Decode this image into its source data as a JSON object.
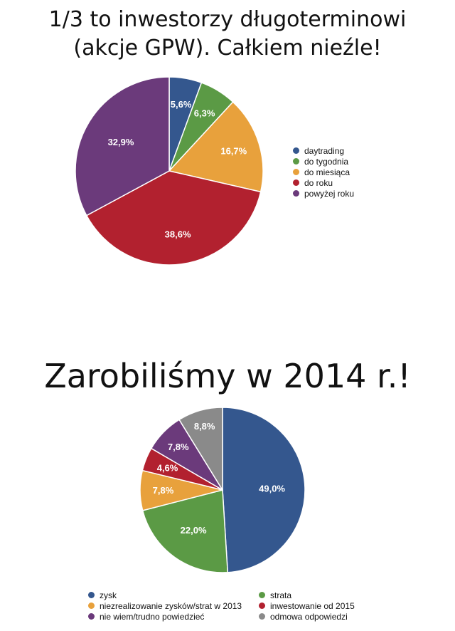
{
  "chart_data": [
    {
      "type": "pie",
      "title": "1/3 to inwestorzy długoterminowi (akcje GPW). Całkiem nieźle!",
      "title_lines": [
        "1/3 to inwestorzy długoterminowi",
        "(akcje GPW). Całkiem nieźle!"
      ],
      "legend_position": "right",
      "categories": [
        "daytrading",
        "do tygodnia",
        "do miesiąca",
        "do roku",
        "powyżej roku"
      ],
      "values": [
        5.6,
        6.3,
        16.7,
        38.6,
        32.9
      ],
      "labels": [
        "5,6%",
        "6,3%",
        "16,7%",
        "38,6%",
        "32,9%"
      ],
      "colors": [
        "#34578e",
        "#5b9a45",
        "#e8a13c",
        "#b2212f",
        "#6b3a7b"
      ]
    },
    {
      "type": "pie",
      "title": "Zarobiliśmy w 2014 r.!",
      "legend_position": "bottom",
      "categories": [
        "zysk",
        "strata",
        "niezrealizowanie zysków/strat w 2013",
        "inwestowanie od 2015",
        "nie wiem/trudno powiedzieć",
        "odmowa odpowiedzi"
      ],
      "values": [
        49.0,
        22.0,
        7.8,
        4.6,
        7.8,
        8.8
      ],
      "labels": [
        "49,0%",
        "22,0%",
        "7,8%",
        "4,6%",
        "7,8%",
        "8,8%"
      ],
      "colors": [
        "#34578e",
        "#5b9a45",
        "#e8a13c",
        "#b2212f",
        "#6b3a7b",
        "#8a8a8a"
      ]
    }
  ]
}
